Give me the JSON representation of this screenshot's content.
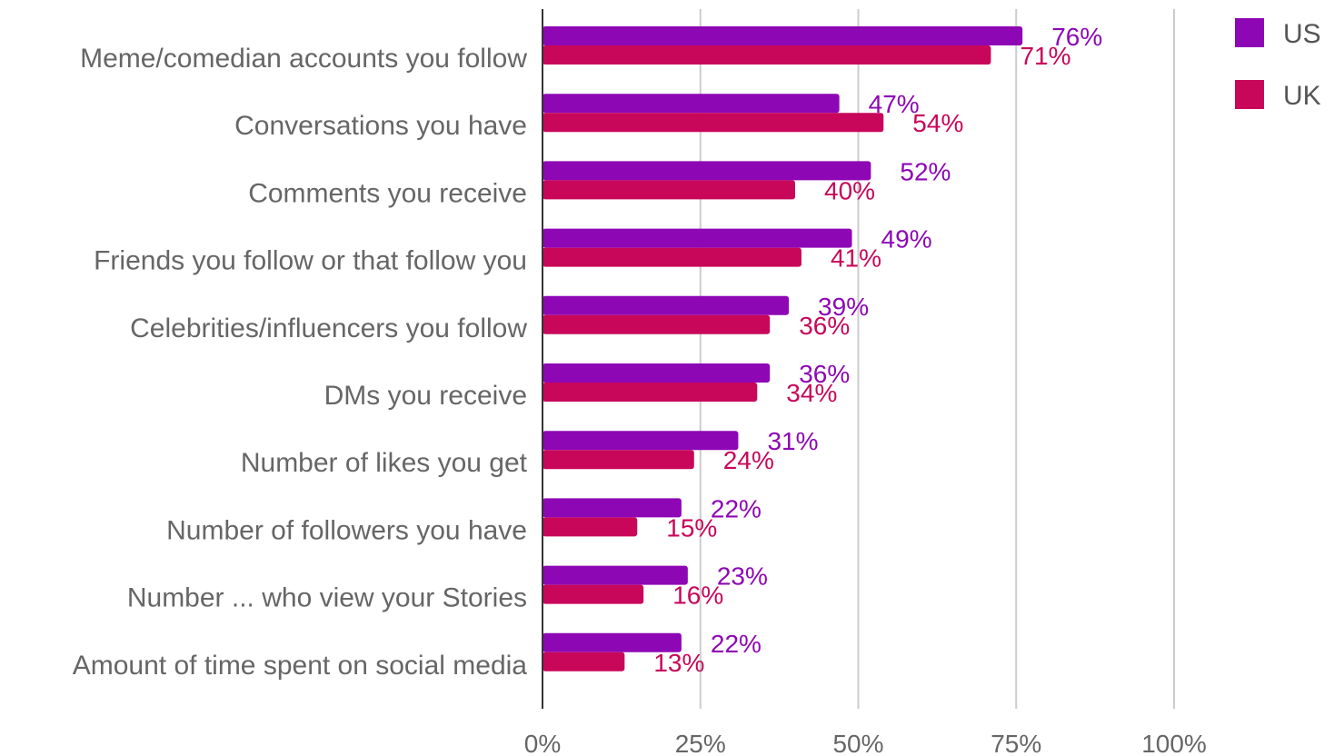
{
  "chart_data": {
    "type": "bar",
    "orientation": "horizontal",
    "categories": [
      "Meme/comedian accounts you follow",
      "Conversations you have",
      "Comments you receive",
      "Friends you follow or that follow you",
      "Celebrities/influencers you follow",
      "DMs you receive",
      "Number of likes you get",
      "Number of followers you have",
      "Number ... who view your Stories",
      "Amount of time spent on social media"
    ],
    "series": [
      {
        "name": "US",
        "color": "#8e07b5",
        "values": [
          76,
          47,
          52,
          49,
          39,
          36,
          31,
          22,
          23,
          22
        ],
        "labels": [
          "76%",
          "47%",
          "52%",
          "49%",
          "39%",
          "36%",
          "31%",
          "22%",
          "23%",
          "22%"
        ]
      },
      {
        "name": "UK",
        "color": "#c8075a",
        "values": [
          71,
          54,
          40,
          41,
          36,
          34,
          24,
          15,
          16,
          13
        ],
        "labels": [
          "71%",
          "54%",
          "40%",
          "41%",
          "36%",
          "34%",
          "24%",
          "15%",
          "16%",
          "13%"
        ]
      }
    ],
    "xlim": [
      0,
      100
    ],
    "xticks": [
      0,
      25,
      50,
      75,
      100
    ],
    "xtick_labels": [
      "0%",
      "25%",
      "50%",
      "75%",
      "100%"
    ],
    "grid": true,
    "legend_position": "top-right",
    "title": "",
    "xlabel": "",
    "ylabel": ""
  }
}
